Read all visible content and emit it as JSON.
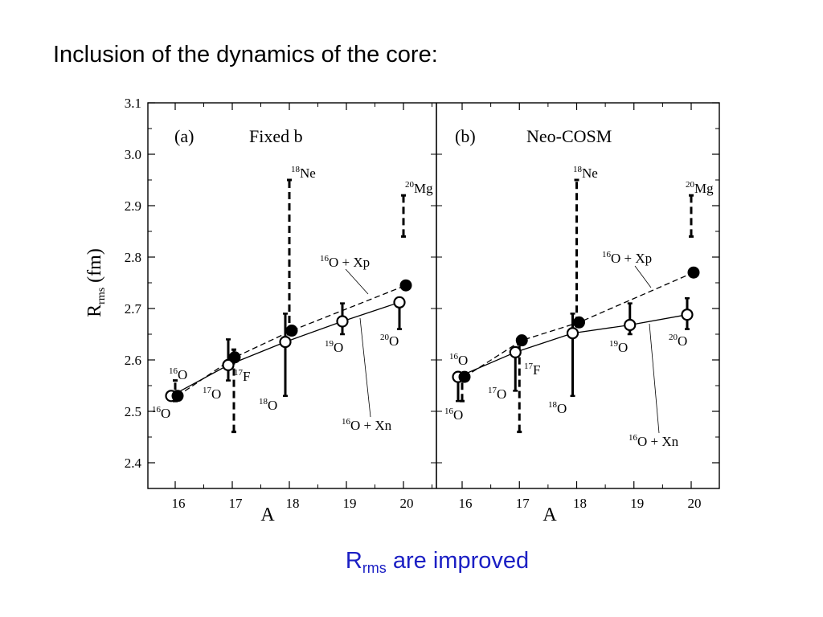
{
  "slide_title": "Inclusion of the dynamics of the core:",
  "caption": {
    "main": "R",
    "sub": "rms",
    "rest": " are improved"
  },
  "chart_data": {
    "type": "scatter",
    "ylabel": {
      "main": "R",
      "sub": "rms",
      "rest": "  (fm)"
    },
    "ylim": [
      2.35,
      3.1
    ],
    "yticks": [
      "2.4",
      "2.5",
      "2.6",
      "2.7",
      "2.8",
      "2.9",
      "3.0",
      "3.1"
    ],
    "ytick_values": [
      2.4,
      2.5,
      2.6,
      2.7,
      2.8,
      2.9,
      3.0,
      3.1
    ],
    "xlim": [
      15.5,
      20.5
    ],
    "xticks": [
      "16",
      "17",
      "18",
      "19",
      "20"
    ],
    "xtick_values": [
      16,
      17,
      18,
      19,
      20
    ],
    "grid": false,
    "panels": [
      {
        "id": "a",
        "panel_label": "(a)",
        "panel_title": "Fixed b",
        "xlabel": "A",
        "series": [
          {
            "name": "16O + Xn",
            "marker": "open-circle",
            "line": "solid",
            "x": [
              16,
              17,
              18,
              19,
              20
            ],
            "y": [
              2.53,
              2.59,
              2.635,
              2.675,
              2.712
            ],
            "err_low": [
              null,
              2.56,
              2.53,
              2.65,
              2.66
            ],
            "err_high": [
              null,
              2.64,
              2.69,
              2.71,
              null
            ]
          },
          {
            "name": "16O + Xp",
            "marker": "filled-circle",
            "line": "dashed",
            "x": [
              16,
              17,
              18,
              20
            ],
            "y": [
              2.53,
              2.605,
              2.657,
              2.745
            ]
          }
        ],
        "experimental": [
          {
            "x": 16,
            "low": 2.52,
            "high": 2.56,
            "style": "dashed"
          },
          {
            "x": 17,
            "low": 2.46,
            "high": 2.62,
            "style": "dashed"
          },
          {
            "x": 18,
            "low": 2.65,
            "high": 2.95,
            "style": "dashed"
          },
          {
            "x": 20,
            "low": 2.84,
            "high": 2.92,
            "style": "dashed"
          }
        ],
        "annotations": [
          {
            "sup": "18",
            "text": "Ne"
          },
          {
            "sup": "20",
            "text": "Mg"
          },
          {
            "sup": "16",
            "text": "O + Xp"
          },
          {
            "sup": "16",
            "text": "O + Xn"
          },
          {
            "sup": "16",
            "text": "O"
          },
          {
            "sup": "16",
            "text": "O"
          },
          {
            "sup": "17",
            "text": "O"
          },
          {
            "sup": "17",
            "text": "F"
          },
          {
            "sup": "18",
            "text": "O"
          },
          {
            "sup": "19",
            "text": "O"
          },
          {
            "sup": "20",
            "text": "O"
          }
        ]
      },
      {
        "id": "b",
        "panel_label": "(b)",
        "panel_title": "Neo-COSM",
        "xlabel": "A",
        "series": [
          {
            "name": "16O + Xn",
            "marker": "open-circle",
            "line": "solid",
            "x": [
              16,
              17,
              18,
              19,
              20
            ],
            "y": [
              2.567,
              2.615,
              2.652,
              2.668,
              2.688
            ],
            "err_low": [
              2.52,
              2.54,
              2.53,
              2.65,
              2.66
            ],
            "err_high": [
              null,
              null,
              2.69,
              2.71,
              2.72
            ]
          },
          {
            "name": "16O + Xp",
            "marker": "filled-circle",
            "line": "dashed",
            "x": [
              16,
              17,
              18,
              20
            ],
            "y": [
              2.567,
              2.638,
              2.673,
              2.77
            ]
          }
        ],
        "experimental": [
          {
            "x": 16,
            "low": 2.52,
            "high": 2.56,
            "style": "dashed"
          },
          {
            "x": 17,
            "low": 2.46,
            "high": 2.63,
            "style": "dashed"
          },
          {
            "x": 18,
            "low": 2.67,
            "high": 2.95,
            "style": "dashed"
          },
          {
            "x": 20,
            "low": 2.84,
            "high": 2.92,
            "style": "dashed"
          }
        ],
        "annotations": [
          {
            "sup": "18",
            "text": "Ne"
          },
          {
            "sup": "20",
            "text": "Mg"
          },
          {
            "sup": "16",
            "text": "O + Xp"
          },
          {
            "sup": "16",
            "text": "O + Xn"
          },
          {
            "sup": "16",
            "text": "O"
          },
          {
            "sup": "16",
            "text": "O"
          },
          {
            "sup": "17",
            "text": "O"
          },
          {
            "sup": "17",
            "text": "F"
          },
          {
            "sup": "18",
            "text": "O"
          },
          {
            "sup": "19",
            "text": "O"
          },
          {
            "sup": "20",
            "text": "O"
          }
        ]
      }
    ]
  }
}
